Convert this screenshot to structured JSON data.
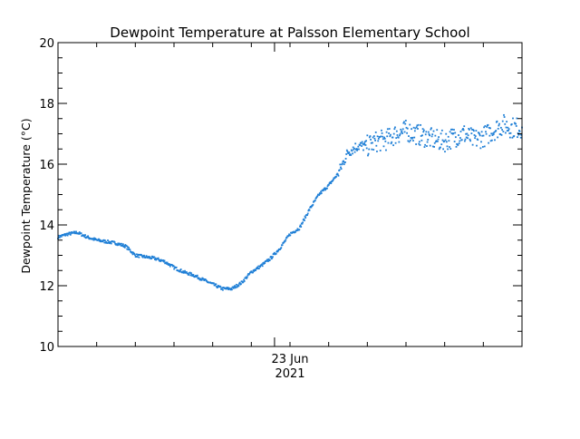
{
  "chart_data": {
    "type": "scatter",
    "title": "Dewpoint Temperature at Palsson Elementary School",
    "ylabel": "Dewpoint Temperature (°C)",
    "xlabel": "",
    "x_tick_label_line1": "23 Jun",
    "x_tick_label_line2": "2021",
    "ylim": [
      10,
      20
    ],
    "y_ticks": [
      10,
      12,
      14,
      16,
      18,
      20
    ],
    "y_tick_labels": [
      "10",
      "12",
      "14",
      "16",
      "18",
      "20"
    ],
    "xlim_hours": [
      0,
      48
    ],
    "x_major_tick_hours": 22.4,
    "x_minor_tick_hours": 4,
    "grid": false,
    "marker_color": "#1f7fd6",
    "series": [
      {
        "x_hours": [
          0,
          1,
          2,
          3,
          4,
          5,
          6,
          7,
          8,
          9,
          10,
          11,
          12,
          13,
          14,
          15,
          16,
          17,
          18,
          19,
          20,
          21,
          22,
          23,
          24,
          25,
          26,
          27,
          28,
          29,
          30,
          31,
          32,
          33,
          34,
          35,
          36,
          37,
          38,
          39,
          40,
          41,
          42,
          43,
          44,
          45,
          46,
          47,
          48
        ],
        "values": [
          13.6,
          13.7,
          13.75,
          13.6,
          13.5,
          13.45,
          13.4,
          13.3,
          13.0,
          12.95,
          12.9,
          12.8,
          12.6,
          12.45,
          12.35,
          12.2,
          12.05,
          11.9,
          11.9,
          12.1,
          12.45,
          12.65,
          12.9,
          13.25,
          13.7,
          13.9,
          14.5,
          15.0,
          15.3,
          15.7,
          16.4,
          16.6,
          16.6,
          16.75,
          16.8,
          17.0,
          17.1,
          17.0,
          16.9,
          16.8,
          16.75,
          16.9,
          17.0,
          16.8,
          16.9,
          17.1,
          17.3,
          17.2,
          17.2
        ]
      }
    ]
  }
}
